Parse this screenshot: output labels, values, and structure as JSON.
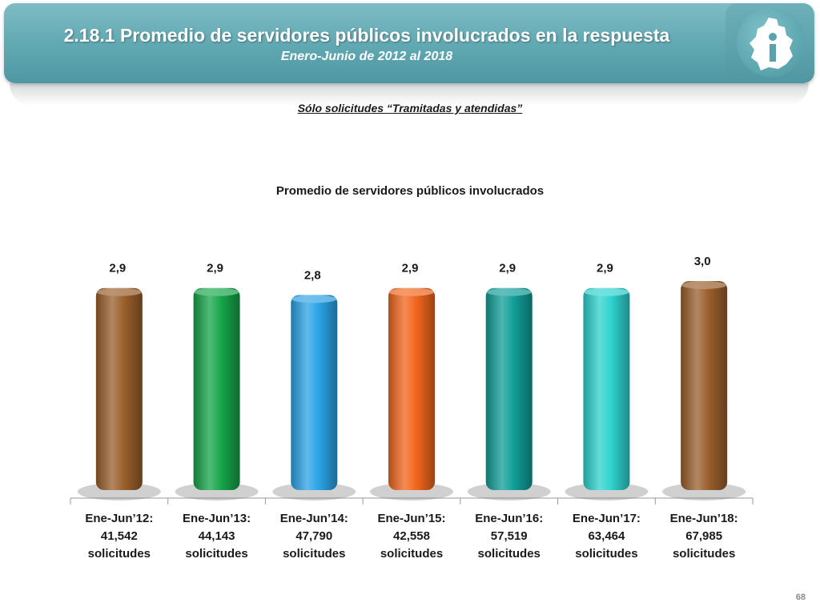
{
  "header": {
    "title": "2.18.1 Promedio de servidores públicos involucrados en la respuesta",
    "subtitle": "Enero-Junio de 2012 al 2018"
  },
  "filter_note": "Sólo solicitudes “Tramitadas y atendidas”",
  "page_number": "68",
  "logo_icon": "cdmx-map-info-icon",
  "chart_data": {
    "type": "bar",
    "title": "Promedio de servidores públicos involucrados",
    "xlabel": "",
    "ylabel": "",
    "categories": [
      [
        "Ene-Jun’12:",
        "41,542",
        "solicitudes"
      ],
      [
        "Ene-Jun’13:",
        "44,143",
        "solicitudes"
      ],
      [
        "Ene-Jun’14:",
        "47,790",
        "solicitudes"
      ],
      [
        "Ene-Jun’15:",
        "42,558",
        "solicitudes"
      ],
      [
        "Ene-Jun’16:",
        "57,519",
        "solicitudes"
      ],
      [
        "Ene-Jun’17:",
        "63,464",
        "solicitudes"
      ],
      [
        "Ene-Jun’18:",
        "67,985",
        "solicitudes"
      ]
    ],
    "values": [
      2.9,
      2.9,
      2.8,
      2.9,
      2.9,
      2.9,
      3.0
    ],
    "value_labels": [
      "2,9",
      "2,9",
      "2,8",
      "2,9",
      "2,9",
      "2,9",
      "3,0"
    ],
    "colors": [
      "#9a5f2c",
      "#16a54a",
      "#2ba3e6",
      "#f2661d",
      "#119e98",
      "#2fd3cf",
      "#9a5f2c"
    ],
    "grid": false,
    "legend": "none"
  }
}
